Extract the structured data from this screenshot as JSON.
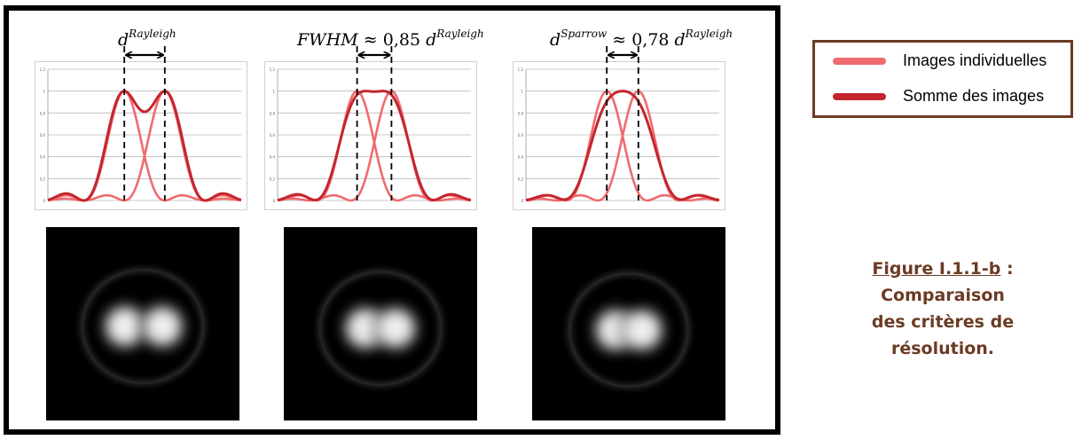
{
  "labels": {
    "rayleigh": {
      "base": "d",
      "sup": "Rayleigh"
    },
    "fwhm": {
      "base": "FWHM",
      "approx": " ≈ 0,85 ",
      "d": "d",
      "sup": "Rayleigh"
    },
    "sparrow": {
      "base": "d",
      "sup": "Sparrow",
      "approx": " ≈ 0,78 ",
      "d": "d",
      "sup2": "Rayleigh"
    }
  },
  "y_ticks": [
    "1,2",
    "1",
    "0,8",
    "0,6",
    "0,4",
    "0,2",
    "0"
  ],
  "legend": {
    "items": [
      {
        "label": "Images individuelles",
        "color": "#ef6b6e"
      },
      {
        "label": "Somme des images",
        "color": "#c4262e"
      }
    ]
  },
  "caption": {
    "title": "Figure I.1.1-b",
    "colon": " :",
    "text": "Comparaison des critères de résolution."
  },
  "colors": {
    "individual": "#ef6b6e",
    "sum": "#c4262e",
    "legend_border": "#6b3b24",
    "caption": "#6b3b24"
  },
  "chart_data": [
    {
      "type": "line",
      "title": "",
      "ylim": [
        0,
        1.2
      ],
      "yticks": [
        0,
        0.2,
        0.4,
        0.6,
        0.8,
        1,
        1.2
      ],
      "separation": 1.0,
      "series": [
        {
          "kind": "individual"
        },
        {
          "kind": "individual"
        },
        {
          "kind": "sum"
        }
      ]
    },
    {
      "type": "line",
      "title": "",
      "ylim": [
        0,
        1.2
      ],
      "yticks": [
        0,
        0.2,
        0.4,
        0.6,
        0.8,
        1,
        1.2
      ],
      "separation": 0.85,
      "series": [
        {
          "kind": "individual"
        },
        {
          "kind": "individual"
        },
        {
          "kind": "sum"
        }
      ]
    },
    {
      "type": "line",
      "title": "",
      "ylim": [
        0,
        1.2
      ],
      "yticks": [
        0,
        0.2,
        0.4,
        0.6,
        0.8,
        1,
        1.2
      ],
      "separation": 0.78,
      "series": [
        {
          "kind": "individual"
        },
        {
          "kind": "individual"
        },
        {
          "kind": "sum"
        }
      ]
    }
  ]
}
